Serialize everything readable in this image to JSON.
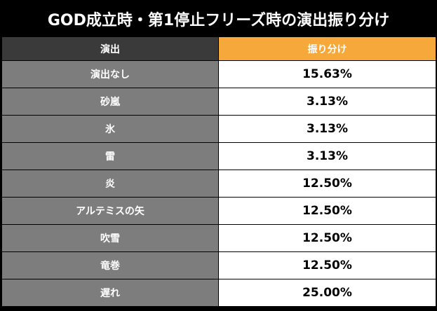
{
  "title": "GOD成立時・第1停止フリーズ時の演出振り分け",
  "table": {
    "headers": [
      "演出",
      "振り分け"
    ],
    "rows": [
      {
        "label": "演出なし",
        "value": "15.63%"
      },
      {
        "label": "砂嵐",
        "value": "3.13%"
      },
      {
        "label": "氷",
        "value": "3.13%"
      },
      {
        "label": "雷",
        "value": "3.13%"
      },
      {
        "label": "炎",
        "value": "12.50%"
      },
      {
        "label": "アルテミスの矢",
        "value": "12.50%"
      },
      {
        "label": "吹雪",
        "value": "12.50%"
      },
      {
        "label": "竜巻",
        "value": "12.50%"
      },
      {
        "label": "遅れ",
        "value": "25.00%"
      }
    ]
  },
  "colors": {
    "title_bg": "#000000",
    "header_left_bg": "#3a3a3a",
    "header_right_bg": "#f7a83a",
    "label_cell_bg": "#7d7d7d",
    "value_cell_bg": "#ffffff"
  }
}
